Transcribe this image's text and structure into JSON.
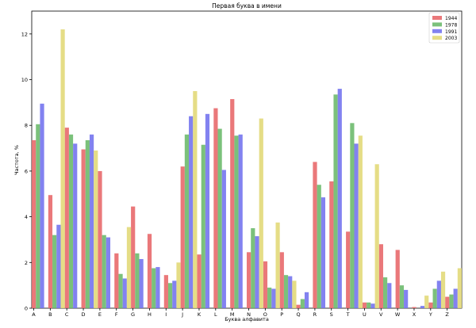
{
  "chart_data": {
    "type": "bar",
    "title": "Первая буква в имени",
    "xlabel": "Буква алфавита",
    "ylabel": "Частота, %",
    "ylim": [
      0,
      13
    ],
    "yticks": [
      0,
      2,
      4,
      6,
      8,
      10,
      12
    ],
    "grid": false,
    "legend_position": "top-right",
    "categories": [
      "A",
      "B",
      "C",
      "D",
      "E",
      "F",
      "G",
      "H",
      "I",
      "J",
      "K",
      "L",
      "M",
      "N",
      "O",
      "P",
      "Q",
      "R",
      "S",
      "T",
      "U",
      "V",
      "W",
      "X",
      "Y",
      "Z"
    ],
    "series": [
      {
        "name": "1944",
        "color": "#e8696b",
        "values": [
          7.35,
          4.95,
          7.9,
          6.95,
          6.0,
          2.4,
          4.45,
          3.25,
          1.45,
          6.2,
          2.35,
          8.75,
          9.15,
          2.45,
          2.05,
          2.45,
          0.15,
          6.4,
          5.55,
          3.35,
          0.25,
          2.8,
          2.55,
          0.05,
          0.25,
          0.5
        ]
      },
      {
        "name": "1978",
        "color": "#6dba6d",
        "values": [
          8.05,
          3.2,
          7.6,
          7.35,
          3.2,
          1.5,
          2.4,
          1.75,
          1.1,
          7.6,
          7.15,
          7.85,
          7.55,
          3.5,
          0.9,
          1.45,
          0.4,
          5.4,
          9.35,
          8.1,
          0.25,
          1.35,
          1.0,
          0.0,
          0.85,
          0.6
        ]
      },
      {
        "name": "1991",
        "color": "#7474ee",
        "values": [
          8.95,
          3.65,
          7.2,
          7.6,
          3.1,
          1.3,
          2.15,
          1.8,
          1.2,
          8.4,
          8.5,
          6.05,
          7.6,
          3.15,
          0.85,
          1.4,
          0.7,
          4.85,
          9.6,
          7.2,
          0.2,
          1.1,
          0.8,
          0.1,
          1.2,
          0.85
        ]
      },
      {
        "name": "2003",
        "color": "#e2d979",
        "values": [
          0.0,
          12.2,
          0.0,
          6.9,
          0.0,
          3.55,
          0.0,
          0.0,
          2.0,
          9.5,
          0.0,
          0.0,
          0.0,
          8.3,
          3.75,
          1.2,
          0.0,
          0.0,
          0.0,
          7.55,
          6.3,
          0.0,
          0.0,
          0.55,
          1.6,
          1.75
        ]
      }
    ]
  }
}
